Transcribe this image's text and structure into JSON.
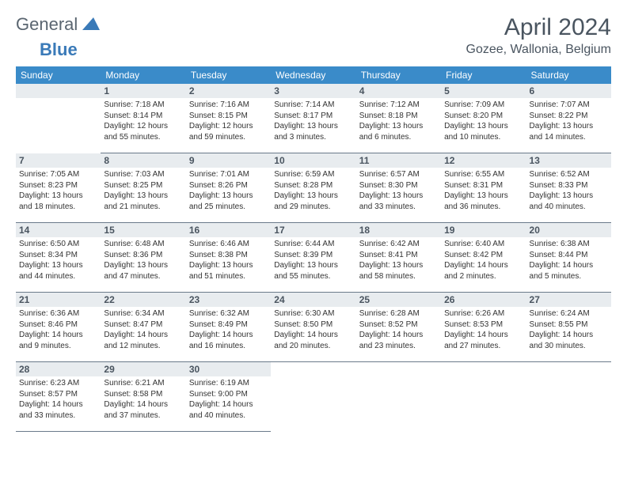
{
  "logo": {
    "text_general": "General",
    "text_blue": "Blue"
  },
  "title": "April 2024",
  "location": "Gozee, Wallonia, Belgium",
  "colors": {
    "header_bg": "#3a8bc9",
    "header_text": "#ffffff",
    "daynum_bg": "#e8ecef",
    "text": "#333333",
    "muted": "#4a5560",
    "rule": "#6a7a8a",
    "logo_accent": "#3a7ab8"
  },
  "weekdays": [
    "Sunday",
    "Monday",
    "Tuesday",
    "Wednesday",
    "Thursday",
    "Friday",
    "Saturday"
  ],
  "font": {
    "family": "Arial",
    "day_text_size_pt": 8,
    "header_size_pt": 9,
    "title_size_pt": 22
  },
  "weeks": [
    [
      null,
      {
        "n": "1",
        "sunrise": "7:18 AM",
        "sunset": "8:14 PM",
        "daylight": "12 hours and 55 minutes."
      },
      {
        "n": "2",
        "sunrise": "7:16 AM",
        "sunset": "8:15 PM",
        "daylight": "12 hours and 59 minutes."
      },
      {
        "n": "3",
        "sunrise": "7:14 AM",
        "sunset": "8:17 PM",
        "daylight": "13 hours and 3 minutes."
      },
      {
        "n": "4",
        "sunrise": "7:12 AM",
        "sunset": "8:18 PM",
        "daylight": "13 hours and 6 minutes."
      },
      {
        "n": "5",
        "sunrise": "7:09 AM",
        "sunset": "8:20 PM",
        "daylight": "13 hours and 10 minutes."
      },
      {
        "n": "6",
        "sunrise": "7:07 AM",
        "sunset": "8:22 PM",
        "daylight": "13 hours and 14 minutes."
      }
    ],
    [
      {
        "n": "7",
        "sunrise": "7:05 AM",
        "sunset": "8:23 PM",
        "daylight": "13 hours and 18 minutes."
      },
      {
        "n": "8",
        "sunrise": "7:03 AM",
        "sunset": "8:25 PM",
        "daylight": "13 hours and 21 minutes."
      },
      {
        "n": "9",
        "sunrise": "7:01 AM",
        "sunset": "8:26 PM",
        "daylight": "13 hours and 25 minutes."
      },
      {
        "n": "10",
        "sunrise": "6:59 AM",
        "sunset": "8:28 PM",
        "daylight": "13 hours and 29 minutes."
      },
      {
        "n": "11",
        "sunrise": "6:57 AM",
        "sunset": "8:30 PM",
        "daylight": "13 hours and 33 minutes."
      },
      {
        "n": "12",
        "sunrise": "6:55 AM",
        "sunset": "8:31 PM",
        "daylight": "13 hours and 36 minutes."
      },
      {
        "n": "13",
        "sunrise": "6:52 AM",
        "sunset": "8:33 PM",
        "daylight": "13 hours and 40 minutes."
      }
    ],
    [
      {
        "n": "14",
        "sunrise": "6:50 AM",
        "sunset": "8:34 PM",
        "daylight": "13 hours and 44 minutes."
      },
      {
        "n": "15",
        "sunrise": "6:48 AM",
        "sunset": "8:36 PM",
        "daylight": "13 hours and 47 minutes."
      },
      {
        "n": "16",
        "sunrise": "6:46 AM",
        "sunset": "8:38 PM",
        "daylight": "13 hours and 51 minutes."
      },
      {
        "n": "17",
        "sunrise": "6:44 AM",
        "sunset": "8:39 PM",
        "daylight": "13 hours and 55 minutes."
      },
      {
        "n": "18",
        "sunrise": "6:42 AM",
        "sunset": "8:41 PM",
        "daylight": "13 hours and 58 minutes."
      },
      {
        "n": "19",
        "sunrise": "6:40 AM",
        "sunset": "8:42 PM",
        "daylight": "14 hours and 2 minutes."
      },
      {
        "n": "20",
        "sunrise": "6:38 AM",
        "sunset": "8:44 PM",
        "daylight": "14 hours and 5 minutes."
      }
    ],
    [
      {
        "n": "21",
        "sunrise": "6:36 AM",
        "sunset": "8:46 PM",
        "daylight": "14 hours and 9 minutes."
      },
      {
        "n": "22",
        "sunrise": "6:34 AM",
        "sunset": "8:47 PM",
        "daylight": "14 hours and 12 minutes."
      },
      {
        "n": "23",
        "sunrise": "6:32 AM",
        "sunset": "8:49 PM",
        "daylight": "14 hours and 16 minutes."
      },
      {
        "n": "24",
        "sunrise": "6:30 AM",
        "sunset": "8:50 PM",
        "daylight": "14 hours and 20 minutes."
      },
      {
        "n": "25",
        "sunrise": "6:28 AM",
        "sunset": "8:52 PM",
        "daylight": "14 hours and 23 minutes."
      },
      {
        "n": "26",
        "sunrise": "6:26 AM",
        "sunset": "8:53 PM",
        "daylight": "14 hours and 27 minutes."
      },
      {
        "n": "27",
        "sunrise": "6:24 AM",
        "sunset": "8:55 PM",
        "daylight": "14 hours and 30 minutes."
      }
    ],
    [
      {
        "n": "28",
        "sunrise": "6:23 AM",
        "sunset": "8:57 PM",
        "daylight": "14 hours and 33 minutes."
      },
      {
        "n": "29",
        "sunrise": "6:21 AM",
        "sunset": "8:58 PM",
        "daylight": "14 hours and 37 minutes."
      },
      {
        "n": "30",
        "sunrise": "6:19 AM",
        "sunset": "9:00 PM",
        "daylight": "14 hours and 40 minutes."
      },
      null,
      null,
      null,
      null
    ]
  ],
  "labels": {
    "sunrise": "Sunrise:",
    "sunset": "Sunset:",
    "daylight": "Daylight:"
  }
}
